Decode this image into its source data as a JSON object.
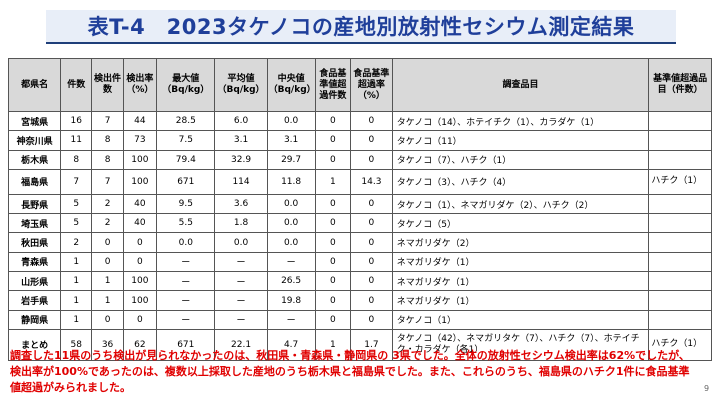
{
  "title": "表T-4　2023タケノコの産地別放射性セシウム測定結果",
  "table": {
    "headers": [
      "都県名",
      "件数",
      "検出件数",
      "検出率（%）",
      "最大値（Bq/kg）",
      "平均値（Bq/kg）",
      "中央値（Bq/kg）",
      "食品基準値超過件数",
      "食品基準超過率（%）",
      "調査品目",
      "基準値超過品目（件数）"
    ],
    "rows": [
      {
        "pref": "宮城県",
        "count": "16",
        "detected": "7",
        "rate": "44",
        "max": "28.5",
        "mean": "6.0",
        "median": "0.0",
        "over_count": "0",
        "over_rate": "0",
        "items": "タケノコ（14）、ホテイチク（1）、カラダケ（1）",
        "over_items": ""
      },
      {
        "pref": "神奈川県",
        "count": "11",
        "detected": "8",
        "rate": "73",
        "max": "7.5",
        "mean": "3.1",
        "median": "3.1",
        "over_count": "0",
        "over_rate": "0",
        "items": "タケノコ（11）",
        "over_items": ""
      },
      {
        "pref": "栃木県",
        "count": "8",
        "detected": "8",
        "rate": "100",
        "max": "79.4",
        "mean": "32.9",
        "median": "29.7",
        "over_count": "0",
        "over_rate": "0",
        "items": "タケノコ（7）、ハチク（1）",
        "over_items": ""
      },
      {
        "pref": "福島県",
        "count": "7",
        "detected": "7",
        "rate": "100",
        "max": "671",
        "mean": "114",
        "median": "11.8",
        "over_count": "1",
        "over_rate": "14.3",
        "items": "タケノコ（3）、ハチク（4）",
        "over_items": "ハチク（1）"
      },
      {
        "pref": "長野県",
        "count": "5",
        "detected": "2",
        "rate": "40",
        "max": "9.5",
        "mean": "3.6",
        "median": "0.0",
        "over_count": "0",
        "over_rate": "0",
        "items": "タケノコ（1）、ネマガリダケ（2）、ハチク（2）",
        "over_items": ""
      },
      {
        "pref": "埼玉県",
        "count": "5",
        "detected": "2",
        "rate": "40",
        "max": "5.5",
        "mean": "1.8",
        "median": "0.0",
        "over_count": "0",
        "over_rate": "0",
        "items": "タケノコ（5）",
        "over_items": ""
      },
      {
        "pref": "秋田県",
        "count": "2",
        "detected": "0",
        "rate": "0",
        "max": "0.0",
        "mean": "0.0",
        "median": "0.0",
        "over_count": "0",
        "over_rate": "0",
        "items": "ネマガリダケ（2）",
        "over_items": ""
      },
      {
        "pref": "青森県",
        "count": "1",
        "detected": "0",
        "rate": "0",
        "max": "ー",
        "mean": "ー",
        "median": "ー",
        "over_count": "0",
        "over_rate": "0",
        "items": "ネマガリダケ（1）",
        "over_items": ""
      },
      {
        "pref": "山形県",
        "count": "1",
        "detected": "1",
        "rate": "100",
        "max": "ー",
        "mean": "ー",
        "median": "26.5",
        "over_count": "0",
        "over_rate": "0",
        "items": "ネマガリダケ（1）",
        "over_items": ""
      },
      {
        "pref": "岩手県",
        "count": "1",
        "detected": "1",
        "rate": "100",
        "max": "ー",
        "mean": "ー",
        "median": "19.8",
        "over_count": "0",
        "over_rate": "0",
        "items": "ネマガリダケ（1）",
        "over_items": ""
      },
      {
        "pref": "静岡県",
        "count": "1",
        "detected": "0",
        "rate": "0",
        "max": "ー",
        "mean": "ー",
        "median": "ー",
        "over_count": "0",
        "over_rate": "0",
        "items": "タケノコ（1）",
        "over_items": ""
      },
      {
        "pref": "まとめ",
        "count": "58",
        "detected": "36",
        "rate": "62",
        "max": "671",
        "mean": "22.1",
        "median": "4.7",
        "over_count": "1",
        "over_rate": "1.7",
        "items": "タケノコ（42）、ネマガリタケ（7）、ハチク（7）、ホテイチク・カラダケ（各1）",
        "over_items": "ハチク（1）"
      }
    ]
  },
  "footnote": "調査した11県のうち検出が見られなかったのは、秋田県・青森県・静岡県の 3県でした。全体の放射性セシウム検出率は62%でしたが、検出率が100%であったのは、複数以上採取した産地のうち栃木県と福島県でした。また、これらのうち、福島県のハチク1件に食品基準値超過がみられました。",
  "page_number": "9"
}
